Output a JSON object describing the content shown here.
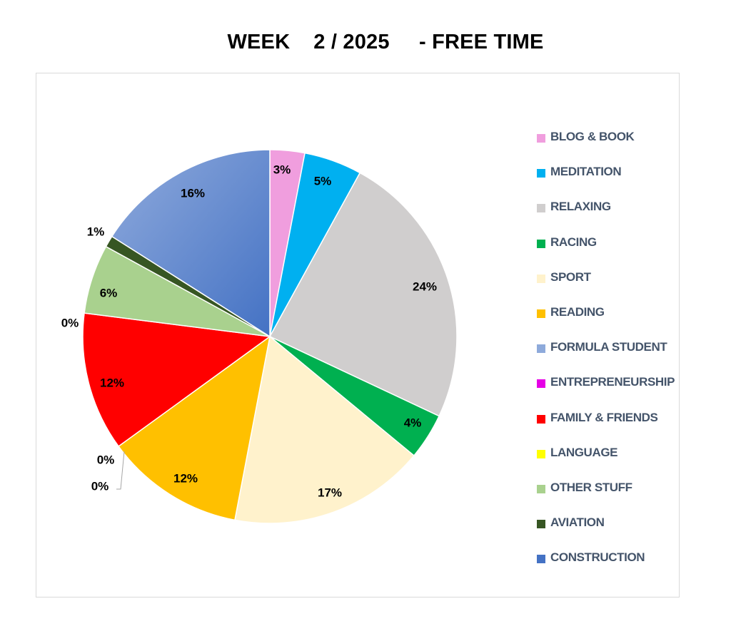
{
  "chart_data": {
    "type": "pie",
    "title": "WEEK    2 / 2025     - FREE TIME",
    "legend_position": "right",
    "slices": [
      {
        "name": "BLOG & BOOK",
        "value": 3,
        "label": "3%",
        "color": "#f09ede"
      },
      {
        "name": "MEDITATION",
        "value": 5,
        "label": "5%",
        "color": "#00b0f0"
      },
      {
        "name": "RELAXING",
        "value": 24,
        "label": "24%",
        "color": "#d0cece"
      },
      {
        "name": "RACING",
        "value": 4,
        "label": "4%",
        "color": "#00b050"
      },
      {
        "name": "SPORT",
        "value": 17,
        "label": "17%",
        "color": "#fff2cc"
      },
      {
        "name": "READING",
        "value": 12,
        "label": "12%",
        "color": "#ffc000"
      },
      {
        "name": "FORMULA STUDENT",
        "value": 0,
        "label": "0%",
        "color": "#8eaadb"
      },
      {
        "name": "ENTREPRENEURSHIP",
        "value": 0,
        "label": "0%",
        "color": "#e600e6"
      },
      {
        "name": "FAMILY & FRIENDS",
        "value": 12,
        "label": "12%",
        "color": "#ff0000"
      },
      {
        "name": "LANGUAGE",
        "value": 0,
        "label": "0%",
        "color": "#ffff00"
      },
      {
        "name": "OTHER STUFF",
        "value": 6,
        "label": "6%",
        "color": "#a9d18e"
      },
      {
        "name": "AVIATION",
        "value": 1,
        "label": "1%",
        "color": "#375623"
      },
      {
        "name": "CONSTRUCTION",
        "value": 16,
        "label": "16%",
        "color": "#4472c4"
      }
    ]
  }
}
